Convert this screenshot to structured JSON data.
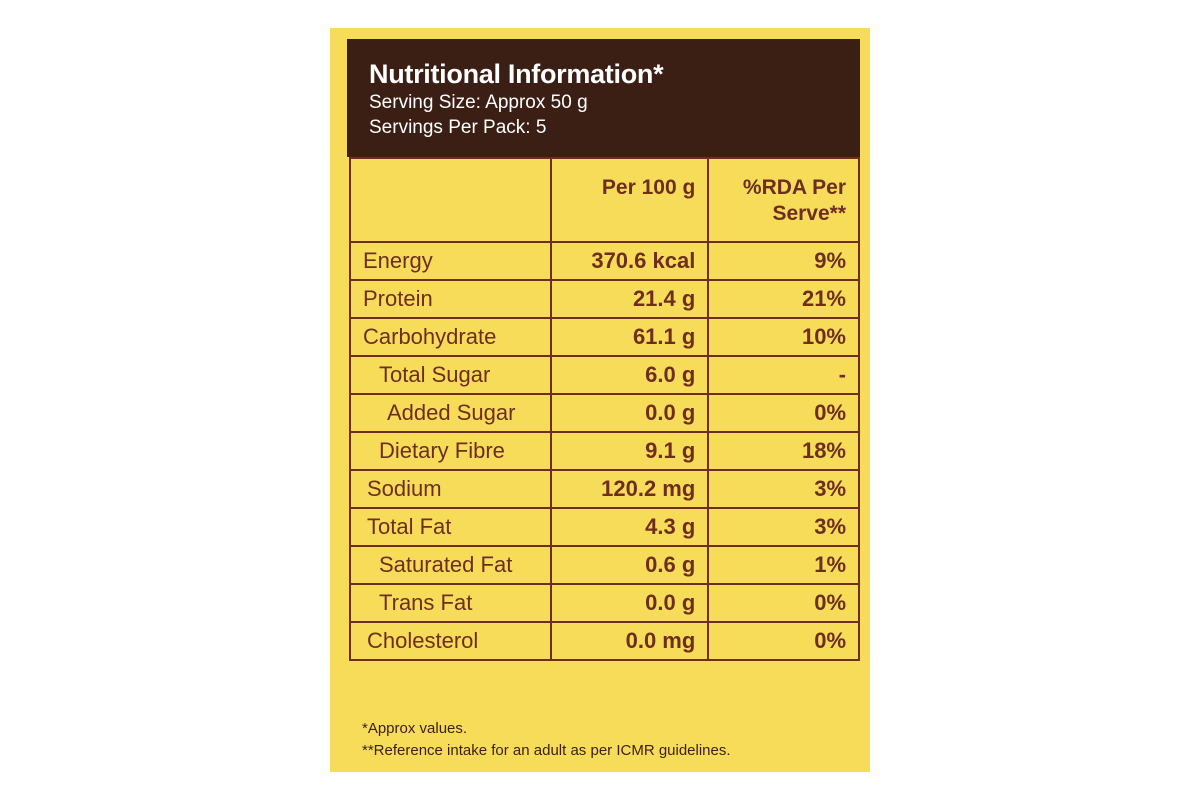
{
  "header": {
    "title": "Nutritional Information*",
    "serving_size": "Serving Size: Approx 50 g",
    "servings_per_pack": "Servings Per Pack: 5"
  },
  "columns": {
    "nutrient": "",
    "per_100g": "Per 100 g",
    "rda_line1": "%RDA Per",
    "rda_line2": "Serve**"
  },
  "rows": [
    {
      "name": "Energy",
      "per_100g": "370.6 kcal",
      "rda": "9%"
    },
    {
      "name": "Protein",
      "per_100g": "21.4 g",
      "rda": "21%"
    },
    {
      "name": "Carbohydrate",
      "per_100g": "61.1 g",
      "rda": "10%"
    },
    {
      "name": "Total Sugar",
      "per_100g": "6.0 g",
      "rda": "-"
    },
    {
      "name": "Added Sugar",
      "per_100g": "0.0 g",
      "rda": "0%"
    },
    {
      "name": "Dietary Fibre",
      "per_100g": "9.1 g",
      "rda": "18%"
    },
    {
      "name": "Sodium",
      "per_100g": "120.2 mg",
      "rda": "3%"
    },
    {
      "name": "Total Fat",
      "per_100g": "4.3 g",
      "rda": "3%"
    },
    {
      "name": "Saturated Fat",
      "per_100g": "0.6 g",
      "rda": "1%"
    },
    {
      "name": "Trans Fat",
      "per_100g": "0.0 g",
      "rda": "0%"
    },
    {
      "name": "Cholesterol",
      "per_100g": "0.0 mg",
      "rda": "0%"
    }
  ],
  "footnotes": {
    "approx": "*Approx values.",
    "reference": "**Reference intake for an adult as per ICMR guidelines."
  },
  "colors": {
    "panel": "#f7dc5a",
    "header_bg": "#3b1f14",
    "ink": "#6e2e1e"
  }
}
